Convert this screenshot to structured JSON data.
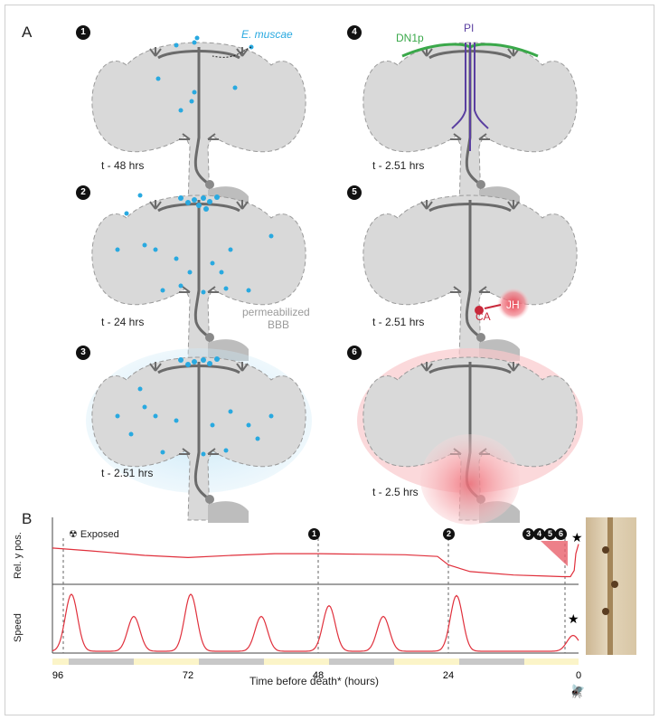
{
  "figure": {
    "panel_a_label": "A",
    "panel_b_label": "B"
  },
  "panels": [
    {
      "number": "1",
      "time": "t - 48 hrs",
      "annotation": "E. muscae"
    },
    {
      "number": "2",
      "time": "t - 24 hrs",
      "annotation": "permeabilized\nBBB",
      "annotation_line1": "permeabilized",
      "annotation_line2": "BBB"
    },
    {
      "number": "3",
      "time": "t - 2.51 hrs"
    },
    {
      "number": "4",
      "time": "t - 2.51 hrs",
      "label_left": "DN1p",
      "label_top": "PI"
    },
    {
      "number": "5",
      "time": "t - 2.51 hrs",
      "label_ca": "CA",
      "label_jh": "JH"
    },
    {
      "number": "6",
      "time": "t - 2.5 hrs"
    }
  ],
  "colors": {
    "fungus": "#29a9e0",
    "brain": "#d9d9d9",
    "dn1p": "#3aa84a",
    "pi": "#5a3fa0",
    "jh": "#e03a4a",
    "trace": "#e0303c",
    "light_phase": "#fbf4c8",
    "dark_phase": "#c8c8c8"
  },
  "plot": {
    "exposed_label": "Exposed",
    "ylabel_top": "Rel. y pos.",
    "ylabel_bottom": "Speed",
    "xlabel": "Time before death* (hours)",
    "x_ticks": [
      "96",
      "72",
      "48",
      "24",
      "0"
    ],
    "markers_top": [
      "1",
      "2",
      "3",
      "4",
      "5",
      "6"
    ]
  },
  "chart_data": {
    "type": "line",
    "xlabel": "Time before death* (hours)",
    "x_ticks": [
      96,
      72,
      48,
      24,
      0
    ],
    "xlim": [
      96,
      0
    ],
    "series": [
      {
        "name": "Rel. y pos.",
        "x": [
          97,
          90,
          80,
          72,
          64,
          56,
          48,
          40,
          32,
          26,
          24,
          20,
          12,
          6,
          3,
          1.5,
          0.8,
          0.5,
          0
        ],
        "values": [
          0.55,
          0.5,
          0.42,
          0.38,
          0.42,
          0.45,
          0.45,
          0.44,
          0.43,
          0.4,
          0.25,
          0.13,
          0.07,
          0.05,
          0.04,
          0.04,
          0.15,
          0.45,
          0.62
        ]
      },
      {
        "name": "Speed",
        "peaks_x": [
          93.5,
          82,
          71.5,
          58.5,
          46,
          36,
          22.5,
          1
        ],
        "peaks_height": [
          0.9,
          0.55,
          0.9,
          0.55,
          0.72,
          0.55,
          0.88,
          0.25
        ]
      }
    ],
    "event_markers_x": [
      95,
      48,
      24,
      2.5
    ],
    "light_dark_bars": [
      {
        "from": 97,
        "to": 94,
        "phase": "light"
      },
      {
        "from": 94,
        "to": 82,
        "phase": "dark"
      },
      {
        "from": 82,
        "to": 70,
        "phase": "light"
      },
      {
        "from": 70,
        "to": 58,
        "phase": "dark"
      },
      {
        "from": 58,
        "to": 46,
        "phase": "light"
      },
      {
        "from": 46,
        "to": 34,
        "phase": "dark"
      },
      {
        "from": 34,
        "to": 22,
        "phase": "light"
      },
      {
        "from": 22,
        "to": 10,
        "phase": "dark"
      },
      {
        "from": 10,
        "to": 0,
        "phase": "light"
      }
    ]
  }
}
